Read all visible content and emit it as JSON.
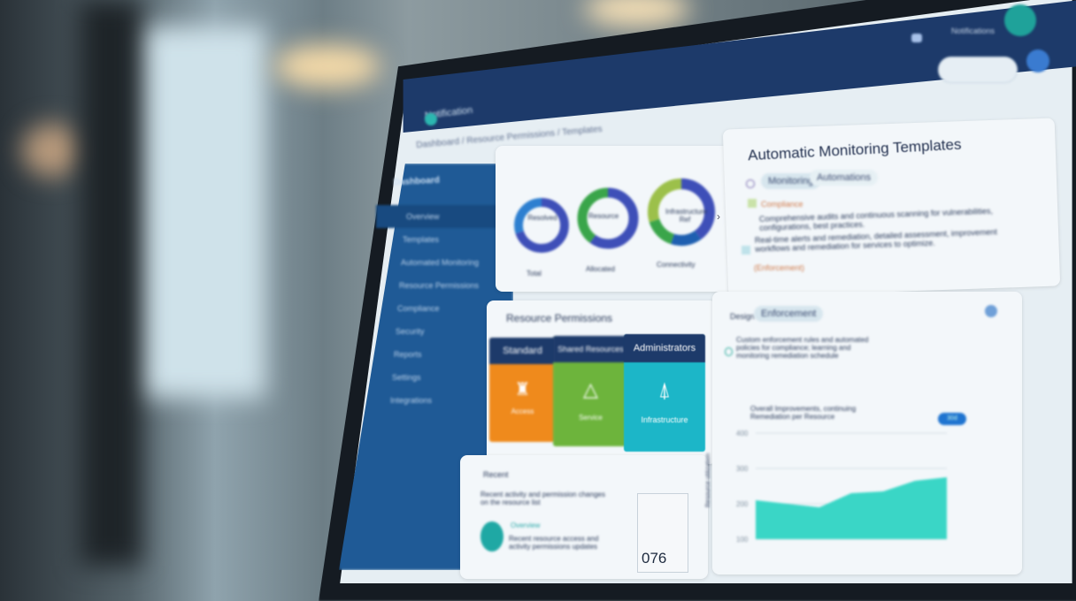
{
  "header": {
    "app_name": "Notification",
    "breadcrumb": "Dashboard / Resource Permissions / Templates",
    "account_text": "Notifications"
  },
  "sidebar": {
    "title": "Dashboard",
    "items": [
      {
        "label": "Overview"
      },
      {
        "label": "Templates"
      },
      {
        "label": "Automated Monitoring"
      },
      {
        "label": "Resource Permissions"
      },
      {
        "label": "Compliance"
      },
      {
        "label": "Security"
      },
      {
        "label": "Reports"
      },
      {
        "label": "Settings"
      },
      {
        "label": "Integrations"
      }
    ]
  },
  "donuts": [
    {
      "center": "Resolved",
      "label": "Total",
      "segments": [
        {
          "value": 70,
          "color": "#3e4fb8"
        },
        {
          "value": 30,
          "color": "#2d7fd0"
        }
      ]
    },
    {
      "center": "Resource",
      "label": "Allocated",
      "segments": [
        {
          "value": 60,
          "color": "#3e4fb8"
        },
        {
          "value": 40,
          "color": "#3aa54a"
        }
      ]
    },
    {
      "center": "Infrastructure Ref",
      "label": "Connectivity",
      "segments": [
        {
          "value": 40,
          "color": "#3e4fb8"
        },
        {
          "value": 15,
          "color": "#1e5fb0"
        },
        {
          "value": 15,
          "color": "#3aa54a"
        },
        {
          "value": 30,
          "color": "#9cc04a"
        }
      ]
    }
  ],
  "monitoring": {
    "title": "Automatic Monitoring Templates",
    "tabs": [
      "Monitoring",
      "Automations"
    ],
    "items": [
      {
        "title": "Compliance",
        "text": "Comprehensive audits and continuous scanning for vulnerabilities, configurations, best practices."
      },
      {
        "text": "Real-time alerts and remediation, detailed assessment, improvement workflows and remediation for services to optimize."
      },
      {
        "tag": "(Enforcement)"
      }
    ]
  },
  "permissions": {
    "title": "Resource Permissions",
    "tiles": [
      {
        "header": "Standard",
        "footer": "Access",
        "color": "#ef8a1c"
      },
      {
        "header": "Shared Resources",
        "footer": "Service",
        "color": "#6db43c"
      },
      {
        "header": "Administrators",
        "footer": "Infrastructure",
        "color": "#1cb6c8"
      }
    ]
  },
  "activity": {
    "title": "Recent",
    "text": "Recent activity and permission changes on the resource list",
    "item_title": "Overview",
    "item_text": "Recent resource access and activity permissions updates",
    "counter": "076"
  },
  "insights": {
    "tabs": [
      "Design",
      "Enforcement"
    ],
    "text": "Custom enforcement rules and automated policies for compliance; learning and monitoring remediation schedule",
    "chart_title": "Overall Improvements, continuing Remediation per Resource",
    "badge": "30d",
    "ylabel": "Resource utilization"
  },
  "chart_data": {
    "type": "area",
    "y_ticks": [
      "400",
      "300",
      "200",
      "100"
    ],
    "values": [
      210,
      200,
      190,
      230,
      235,
      265,
      275
    ],
    "color": "#3ad6c6"
  }
}
